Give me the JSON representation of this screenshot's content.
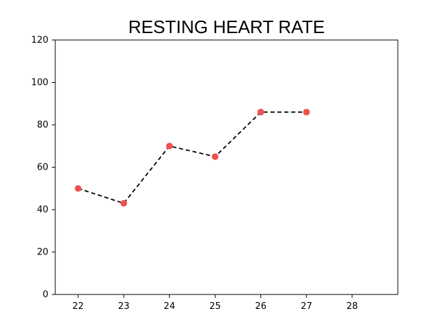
{
  "chart_data": {
    "type": "line",
    "title": "RESTING HEART RATE",
    "xlabel": "",
    "ylabel": "",
    "x": [
      22,
      23,
      24,
      25,
      26,
      27
    ],
    "series": [
      {
        "values": [
          50,
          43,
          70,
          65,
          86,
          86
        ],
        "line_color": "#000000",
        "line_style": "dashed",
        "marker_color": "#f05050"
      }
    ],
    "xticks": [
      "22",
      "23",
      "24",
      "25",
      "26",
      "27",
      "28"
    ],
    "yticks": [
      "0",
      "20",
      "40",
      "60",
      "80",
      "100",
      "120"
    ],
    "xlim": [
      21.5,
      29
    ],
    "ylim": [
      0,
      120
    ],
    "grid": false,
    "legend": "none"
  }
}
